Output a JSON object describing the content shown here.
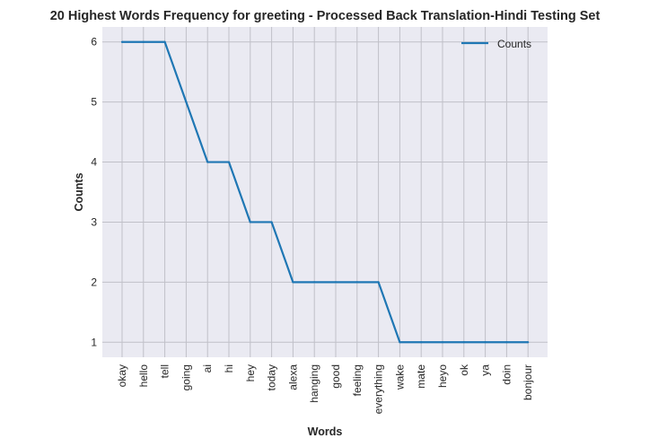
{
  "chart_data": {
    "type": "line",
    "title": "20 Highest Words Frequency for greeting - Processed Back Translation-Hindi Testing Set",
    "xlabel": "Words",
    "ylabel": "Counts",
    "categories": [
      "okay",
      "hello",
      "tell",
      "going",
      "ai",
      "hi",
      "hey",
      "today",
      "alexa",
      "hanging",
      "good",
      "feeling",
      "everything",
      "wake",
      "mate",
      "heyo",
      "ok",
      "ya",
      "doin",
      "bonjour"
    ],
    "series": [
      {
        "name": "Counts",
        "values": [
          6,
          6,
          6,
          5,
          4,
          4,
          3,
          3,
          2,
          2,
          2,
          2,
          2,
          1,
          1,
          1,
          1,
          1,
          1,
          1
        ],
        "color": "#1f77b4"
      }
    ],
    "ylim": [
      0.75,
      6.25
    ],
    "yticks": [
      1,
      2,
      3,
      4,
      5,
      6
    ],
    "grid": true,
    "legend_position": "top-right",
    "background_color": "#eaeaf2",
    "grid_color": "#c0c0c8"
  }
}
